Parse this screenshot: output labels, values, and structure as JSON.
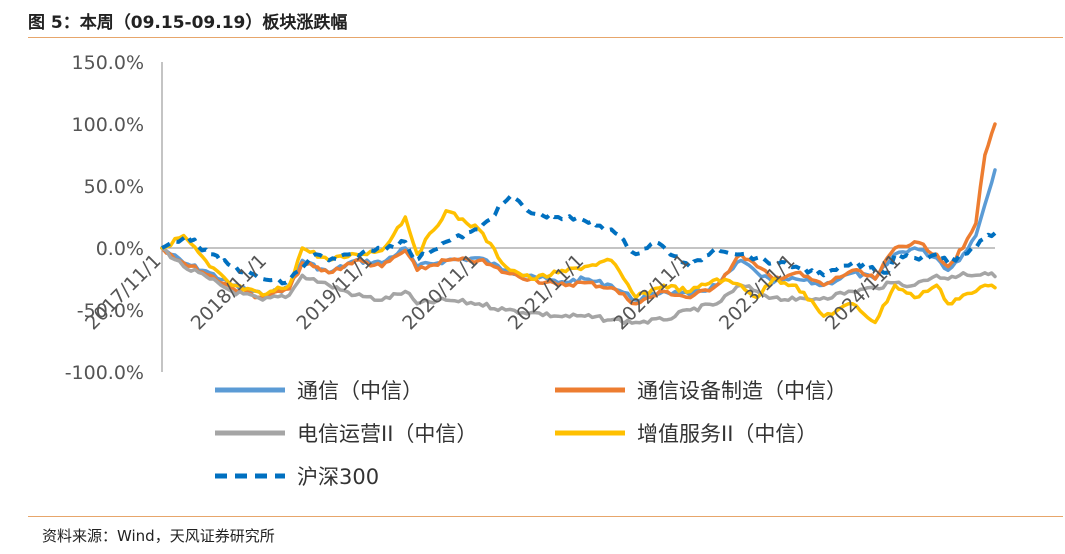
{
  "header": {
    "title": "图 5：本周（09.15-09.19）板块涨跌幅"
  },
  "footer": {
    "source": "资料来源：Wind，天风证券研究所"
  },
  "chart_data": {
    "type": "line",
    "ylim": [
      -100,
      150
    ],
    "yticks": [
      150,
      100,
      50,
      0,
      -50,
      -100
    ],
    "ytick_labels": [
      "150.0%",
      "100.0%",
      "50.0%",
      "0.0%",
      "-50.0%",
      "-100.0%"
    ],
    "x_start": "2017/11/1",
    "x_end": "2025/09/19",
    "xtick_labels": [
      "2017/11/1",
      "2018/11/1",
      "2019/11/1",
      "2020/11/1",
      "2021/11/1",
      "2022/11/1",
      "2023/11/1",
      "2024/11/1"
    ],
    "legend_position": "bottom",
    "series": [
      {
        "name": "通信（中信）",
        "color": "#5b9bd5",
        "style": "solid",
        "points": [
          [
            "2017/11/1",
            0
          ],
          [
            "2018/01/15",
            -12
          ],
          [
            "2018/04/15",
            -20
          ],
          [
            "2018/07/01",
            -30
          ],
          [
            "2018/10/15",
            -38
          ],
          [
            "2019/01/15",
            -32
          ],
          [
            "2019/03/01",
            -10
          ],
          [
            "2019/06/01",
            -20
          ],
          [
            "2019/09/01",
            -10
          ],
          [
            "2019/12/01",
            -12
          ],
          [
            "2020/02/20",
            0
          ],
          [
            "2020/04/01",
            -15
          ],
          [
            "2020/07/10",
            -10
          ],
          [
            "2020/11/01",
            -8
          ],
          [
            "2021/02/01",
            -18
          ],
          [
            "2021/05/01",
            -22
          ],
          [
            "2021/08/01",
            -28
          ],
          [
            "2021/11/01",
            -25
          ],
          [
            "2022/02/01",
            -30
          ],
          [
            "2022/04/27",
            -42
          ],
          [
            "2022/08/01",
            -35
          ],
          [
            "2022/11/01",
            -38
          ],
          [
            "2023/02/01",
            -30
          ],
          [
            "2023/04/25",
            -10
          ],
          [
            "2023/06/20",
            -20
          ],
          [
            "2023/08/15",
            -28
          ],
          [
            "2023/11/01",
            -25
          ],
          [
            "2024/02/05",
            -30
          ],
          [
            "2024/05/15",
            -20
          ],
          [
            "2024/08/01",
            -25
          ],
          [
            "2024/10/08",
            -5
          ],
          [
            "2024/12/15",
            0
          ],
          [
            "2025/03/01",
            -8
          ],
          [
            "2025/04/10",
            -18
          ],
          [
            "2025/06/01",
            -5
          ],
          [
            "2025/07/15",
            10
          ],
          [
            "2025/08/15",
            35
          ],
          [
            "2025/09/19",
            63
          ]
        ]
      },
      {
        "name": "通信设备制造（中信）",
        "color": "#ed7d31",
        "style": "solid",
        "points": [
          [
            "2017/11/1",
            0
          ],
          [
            "2018/01/15",
            -12
          ],
          [
            "2018/04/15",
            -22
          ],
          [
            "2018/07/01",
            -32
          ],
          [
            "2018/10/15",
            -40
          ],
          [
            "2019/01/15",
            -33
          ],
          [
            "2019/03/01",
            -12
          ],
          [
            "2019/06/01",
            -20
          ],
          [
            "2019/09/01",
            -10
          ],
          [
            "2019/12/01",
            -15
          ],
          [
            "2020/02/20",
            -2
          ],
          [
            "2020/04/01",
            -18
          ],
          [
            "2020/07/10",
            -10
          ],
          [
            "2020/11/01",
            -10
          ],
          [
            "2021/02/01",
            -20
          ],
          [
            "2021/05/01",
            -25
          ],
          [
            "2021/08/01",
            -30
          ],
          [
            "2021/11/01",
            -28
          ],
          [
            "2022/02/01",
            -32
          ],
          [
            "2022/04/27",
            -45
          ],
          [
            "2022/08/01",
            -35
          ],
          [
            "2022/11/01",
            -40
          ],
          [
            "2023/02/01",
            -30
          ],
          [
            "2023/04/25",
            -5
          ],
          [
            "2023/06/20",
            -15
          ],
          [
            "2023/08/15",
            -25
          ],
          [
            "2023/11/01",
            -20
          ],
          [
            "2024/02/05",
            -30
          ],
          [
            "2024/05/15",
            -18
          ],
          [
            "2024/08/01",
            -25
          ],
          [
            "2024/10/08",
            0
          ],
          [
            "2024/12/15",
            5
          ],
          [
            "2025/03/01",
            -5
          ],
          [
            "2025/04/10",
            -15
          ],
          [
            "2025/06/01",
            0
          ],
          [
            "2025/07/15",
            20
          ],
          [
            "2025/08/15",
            75
          ],
          [
            "2025/09/19",
            100
          ]
        ]
      },
      {
        "name": "电信运营II（中信）",
        "color": "#a5a5a5",
        "style": "solid",
        "points": [
          [
            "2017/11/1",
            0
          ],
          [
            "2018/01/15",
            -15
          ],
          [
            "2018/04/15",
            -25
          ],
          [
            "2018/07/01",
            -35
          ],
          [
            "2018/10/15",
            -42
          ],
          [
            "2019/01/15",
            -38
          ],
          [
            "2019/03/01",
            -22
          ],
          [
            "2019/06/01",
            -30
          ],
          [
            "2019/09/01",
            -38
          ],
          [
            "2019/12/01",
            -42
          ],
          [
            "2020/02/20",
            -35
          ],
          [
            "2020/04/01",
            -45
          ],
          [
            "2020/07/10",
            -42
          ],
          [
            "2020/11/01",
            -45
          ],
          [
            "2021/02/01",
            -50
          ],
          [
            "2021/05/01",
            -52
          ],
          [
            "2021/08/01",
            -55
          ],
          [
            "2021/11/01",
            -55
          ],
          [
            "2022/02/01",
            -58
          ],
          [
            "2022/04/27",
            -60
          ],
          [
            "2022/08/01",
            -58
          ],
          [
            "2022/11/01",
            -50
          ],
          [
            "2023/02/01",
            -45
          ],
          [
            "2023/04/25",
            -30
          ],
          [
            "2023/06/20",
            -35
          ],
          [
            "2023/08/15",
            -40
          ],
          [
            "2023/11/01",
            -42
          ],
          [
            "2024/02/05",
            -40
          ],
          [
            "2024/05/15",
            -35
          ],
          [
            "2024/08/01",
            -32
          ],
          [
            "2024/10/08",
            -28
          ],
          [
            "2024/12/15",
            -30
          ],
          [
            "2025/03/01",
            -22
          ],
          [
            "2025/04/10",
            -25
          ],
          [
            "2025/06/01",
            -20
          ],
          [
            "2025/07/15",
            -22
          ],
          [
            "2025/08/15",
            -20
          ],
          [
            "2025/09/19",
            -23
          ]
        ]
      },
      {
        "name": "增值服务II（中信）",
        "color": "#ffc000",
        "style": "solid",
        "points": [
          [
            "2017/11/1",
            0
          ],
          [
            "2018/01/15",
            10
          ],
          [
            "2018/04/15",
            -15
          ],
          [
            "2018/07/01",
            -30
          ],
          [
            "2018/10/15",
            -38
          ],
          [
            "2019/01/15",
            -30
          ],
          [
            "2019/03/01",
            0
          ],
          [
            "2019/06/01",
            -10
          ],
          [
            "2019/09/01",
            -5
          ],
          [
            "2019/12/01",
            -2
          ],
          [
            "2020/02/20",
            25
          ],
          [
            "2020/04/01",
            -5
          ],
          [
            "2020/07/10",
            30
          ],
          [
            "2020/11/01",
            15
          ],
          [
            "2021/02/01",
            -15
          ],
          [
            "2021/05/01",
            -25
          ],
          [
            "2021/08/01",
            -20
          ],
          [
            "2021/11/01",
            -15
          ],
          [
            "2022/02/01",
            -10
          ],
          [
            "2022/04/27",
            -40
          ],
          [
            "2022/08/01",
            -30
          ],
          [
            "2022/11/01",
            -35
          ],
          [
            "2023/02/01",
            -25
          ],
          [
            "2023/04/25",
            -30
          ],
          [
            "2023/06/20",
            -40
          ],
          [
            "2023/08/15",
            -25
          ],
          [
            "2023/11/01",
            -30
          ],
          [
            "2024/02/05",
            -55
          ],
          [
            "2024/05/15",
            -45
          ],
          [
            "2024/08/01",
            -60
          ],
          [
            "2024/10/08",
            -30
          ],
          [
            "2024/12/15",
            -40
          ],
          [
            "2025/03/01",
            -30
          ],
          [
            "2025/04/10",
            -45
          ],
          [
            "2025/06/01",
            -38
          ],
          [
            "2025/07/15",
            -35
          ],
          [
            "2025/08/15",
            -30
          ],
          [
            "2025/09/19",
            -32
          ]
        ]
      },
      {
        "name": "沪深300",
        "color": "#0070c0",
        "style": "dashed",
        "points": [
          [
            "2017/11/1",
            0
          ],
          [
            "2018/01/26",
            10
          ],
          [
            "2018/04/15",
            -5
          ],
          [
            "2018/07/01",
            -15
          ],
          [
            "2018/10/15",
            -25
          ],
          [
            "2019/01/04",
            -28
          ],
          [
            "2019/04/15",
            -5
          ],
          [
            "2019/06/01",
            -10
          ],
          [
            "2019/09/01",
            -5
          ],
          [
            "2019/12/01",
            0
          ],
          [
            "2020/02/20",
            5
          ],
          [
            "2020/03/23",
            -10
          ],
          [
            "2020/07/10",
            5
          ],
          [
            "2020/11/01",
            15
          ],
          [
            "2021/02/18",
            42
          ],
          [
            "2021/05/01",
            28
          ],
          [
            "2021/08/01",
            25
          ],
          [
            "2021/11/01",
            22
          ],
          [
            "2022/02/01",
            15
          ],
          [
            "2022/04/27",
            -5
          ],
          [
            "2022/07/01",
            5
          ],
          [
            "2022/10/31",
            -15
          ],
          [
            "2023/01/30",
            0
          ],
          [
            "2023/04/25",
            -5
          ],
          [
            "2023/06/20",
            -8
          ],
          [
            "2023/08/15",
            -12
          ],
          [
            "2023/11/01",
            -15
          ],
          [
            "2024/02/05",
            -22
          ],
          [
            "2024/05/15",
            -12
          ],
          [
            "2024/09/13",
            -20
          ],
          [
            "2024/10/08",
            -5
          ],
          [
            "2024/12/15",
            -8
          ],
          [
            "2025/03/01",
            -5
          ],
          [
            "2025/04/10",
            -12
          ],
          [
            "2025/06/01",
            -5
          ],
          [
            "2025/07/15",
            0
          ],
          [
            "2025/08/15",
            8
          ],
          [
            "2025/09/19",
            12
          ]
        ]
      }
    ]
  }
}
